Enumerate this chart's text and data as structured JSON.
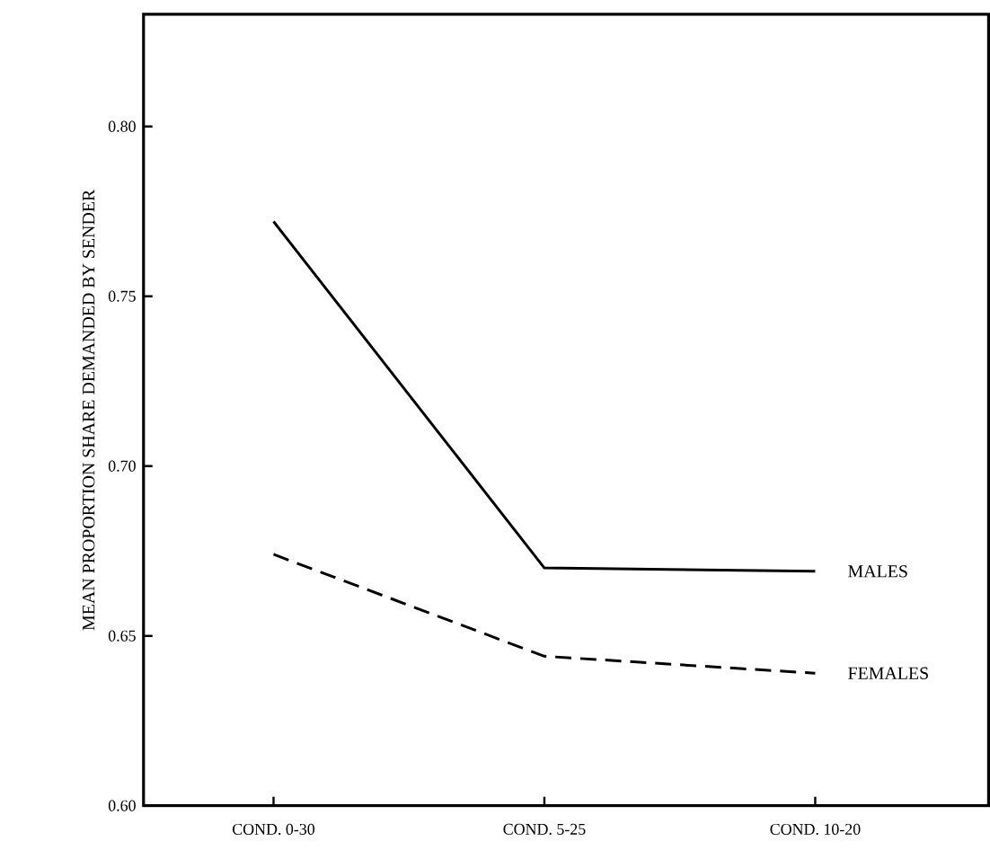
{
  "chart_data": {
    "type": "line",
    "ylabel": "MEAN PROPORTION SHARE DEMANDED BY SENDER",
    "categories": [
      "COND. 0-30",
      "COND. 5-25",
      "COND. 10-20"
    ],
    "series": [
      {
        "name": "MALES",
        "color": "#000000",
        "values": [
          0.772,
          0.67,
          0.669
        ],
        "line_style": "solid"
      },
      {
        "name": "FEMALES",
        "color": "#000000",
        "values": [
          0.674,
          0.644,
          0.639
        ],
        "line_style": "dashed"
      }
    ],
    "ylim": [
      0.6,
      0.833
    ],
    "yticks": [
      {
        "value": 0.6,
        "label": "0.60"
      },
      {
        "value": 0.65,
        "label": "0.65"
      },
      {
        "value": 0.7,
        "label": "0.70"
      },
      {
        "value": 0.75,
        "label": "0.75"
      },
      {
        "value": 0.8,
        "label": "0.80"
      }
    ],
    "grid": false,
    "legend": false,
    "marker": "none"
  }
}
